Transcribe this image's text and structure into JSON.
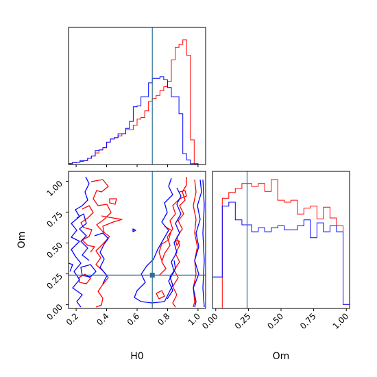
{
  "chart_data": {
    "type": "corner",
    "parameters": [
      "H0",
      "Om"
    ],
    "truths": {
      "H0": 0.7,
      "Om": 0.24
    },
    "colors": {
      "series_a": "#ff0000",
      "series_b": "#0000ff",
      "truth": "#2f6f96"
    },
    "histograms": [
      {
        "parameter": "H0",
        "bin_edges": [
          0.15,
          0.175,
          0.2,
          0.225,
          0.25,
          0.275,
          0.3,
          0.325,
          0.35,
          0.375,
          0.4,
          0.425,
          0.45,
          0.475,
          0.5,
          0.525,
          0.55,
          0.575,
          0.6,
          0.625,
          0.65,
          0.675,
          0.7,
          0.725,
          0.75,
          0.775,
          0.8,
          0.825,
          0.85,
          0.875,
          0.9,
          0.925,
          0.95,
          0.975,
          1.0
        ],
        "series": [
          {
            "values": [
              0.6,
              1.2,
              1.5,
              2.0,
              2.6,
              4.0,
              5.5,
              7.5,
              9.5,
              10.8,
              14.5,
              16.6,
              17.4,
              18.6,
              20.0,
              22.5,
              22.5,
              25.5,
              29.5,
              30.5,
              34.8,
              41.0,
              42.8,
              44.8,
              48.0,
              50.5,
              54.0,
              68.0,
              76.0,
              78.0,
              81.0,
              71.0,
              16.0,
              0.5
            ]
          },
          {
            "values": [
              0.6,
              1.2,
              1.5,
              2.6,
              2.6,
              4.0,
              5.5,
              9.0,
              9.5,
              11.0,
              14.5,
              16.6,
              17.4,
              20.0,
              20.0,
              23.5,
              28.0,
              37.5,
              38.0,
              44.0,
              44.0,
              53.0,
              56.0,
              56.0,
              57.0,
              55.0,
              50.0,
              44.0,
              44.0,
              33.0,
              7.0,
              3.0,
              0.5,
              0.5
            ]
          }
        ]
      },
      {
        "parameter": "Om",
        "bin_edges": [
          -0.025,
          0.0,
          0.025,
          0.05,
          0.075,
          0.1,
          0.125,
          0.15,
          0.175,
          0.2,
          0.225,
          0.25,
          0.275,
          0.3,
          0.325,
          0.35,
          0.375,
          0.4,
          0.425,
          0.45,
          0.475,
          0.5,
          0.525,
          0.55,
          0.575,
          0.6,
          0.625,
          0.65,
          0.675,
          0.7,
          0.725,
          0.75,
          0.775,
          0.8,
          0.825,
          0.85,
          0.875,
          0.9,
          0.925,
          0.95,
          0.975,
          1.0,
          1.025
        ],
        "series": [
          {
            "values": [
              0,
              0,
              0,
              1.12,
              1.12,
              1.18,
              1.18,
              1.22,
              1.22,
              1.27,
              1.27,
              1.27,
              1.24,
              1.24,
              1.27,
              1.27,
              1.19,
              1.19,
              1.31,
              1.31,
              1.1,
              1.1,
              1.08,
              1.08,
              1.1,
              1.1,
              0.96,
              0.96,
              1.02,
              1.02,
              1.04,
              1.04,
              0.91,
              0.91,
              1.03,
              1.03,
              0.92,
              0.92,
              0.84,
              0.84,
              0.04,
              0.04
            ]
          },
          {
            "values": [
              0.32,
              0.32,
              0.32,
              1.04,
              1.04,
              1.08,
              1.08,
              0.9,
              0.9,
              0.85,
              0.85,
              0.85,
              0.78,
              0.78,
              0.82,
              0.82,
              0.78,
              0.78,
              0.82,
              0.82,
              0.84,
              0.84,
              0.8,
              0.8,
              0.8,
              0.8,
              0.84,
              0.84,
              0.9,
              0.9,
              0.72,
              0.72,
              0.87,
              0.87,
              0.78,
              0.78,
              0.84,
              0.84,
              0.78,
              0.78,
              0.04,
              0.04
            ]
          }
        ]
      }
    ],
    "contour_panel": {
      "xlabel": "H0",
      "ylabel": "Om",
      "xlim": [
        0.15,
        1.05
      ],
      "ylim": [
        -0.03,
        1.08
      ],
      "xticks": [
        "0.2",
        "0.4",
        "0.6",
        "0.8",
        "1.0"
      ],
      "yticks": [
        "0.00",
        "0.25",
        "0.50",
        "0.75",
        "1.00"
      ]
    },
    "om_panel": {
      "xlabel": "Om",
      "xticks": [
        "0.00",
        "0.25",
        "0.50",
        "0.75",
        "1.00"
      ]
    },
    "grid": false,
    "legend": "none"
  }
}
